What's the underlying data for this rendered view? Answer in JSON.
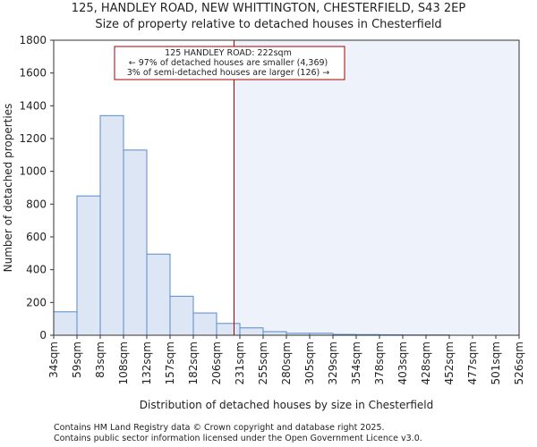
{
  "chart_data": {
    "type": "bar",
    "title_line1": "125, HANDLEY ROAD, NEW WHITTINGTON, CHESTERFIELD, S43 2EP",
    "title_line2": "Size of property relative to detached houses in Chesterfield",
    "xlabel": "Distribution of detached houses by size in Chesterfield",
    "ylabel": "Number of detached properties",
    "ylim": [
      0,
      1800
    ],
    "yticks": [
      0,
      200,
      400,
      600,
      800,
      1000,
      1200,
      1400,
      1600,
      1800
    ],
    "bin_edges": [
      "34sqm",
      "59sqm",
      "83sqm",
      "108sqm",
      "132sqm",
      "157sqm",
      "182sqm",
      "206sqm",
      "231sqm",
      "255sqm",
      "280sqm",
      "305sqm",
      "329sqm",
      "354sqm",
      "378sqm",
      "403sqm",
      "428sqm",
      "452sqm",
      "477sqm",
      "501sqm",
      "526sqm"
    ],
    "values": [
      143,
      850,
      1340,
      1130,
      495,
      238,
      136,
      72,
      45,
      22,
      12,
      12,
      5,
      4,
      3,
      2,
      2,
      0,
      0,
      0
    ],
    "marker_bin_position": 7.75,
    "annotation": {
      "line1": "125 HANDLEY ROAD: 222sqm",
      "line2": "← 97% of detached houses are smaller (4,369)",
      "line3": "3% of semi-detached houses are larger (126) →"
    },
    "colors": {
      "bar_fill": "#dce6f4",
      "bar_stroke": "#5b8ac8",
      "marker": "#aa0000",
      "highlight": "#eef2fb"
    }
  },
  "footer": {
    "line1": "Contains HM Land Registry data © Crown copyright and database right 2025.",
    "line2": "Contains public sector information licensed under the Open Government Licence v3.0."
  }
}
